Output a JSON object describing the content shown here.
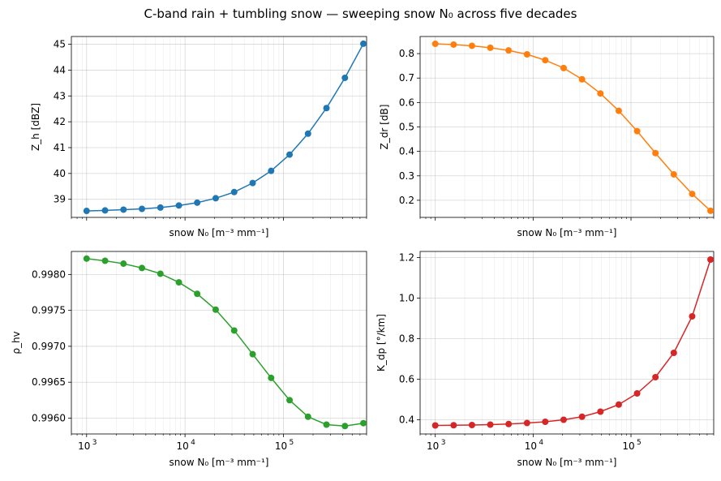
{
  "title": "C-band rain + tumbling snow — sweeping snow N₀ across five decades",
  "chart_data": [
    {
      "type": "line",
      "xlabel": "snow N₀ [m⁻³ mm⁻¹]",
      "ylabel": "Z_h [dBZ]",
      "xscale": "log",
      "xlim": [
        700,
        700000
      ],
      "ylim": [
        38.3,
        45.3
      ],
      "yticks": [
        39,
        40,
        41,
        42,
        43,
        44,
        45
      ],
      "ytick_labels": [
        "39",
        "40",
        "41",
        "42",
        "43",
        "44",
        "45"
      ],
      "xtick_labels_shown": false,
      "grid": true,
      "color": "#1f77b4",
      "x": [
        1000,
        1540,
        2370,
        3650,
        5620,
        8660,
        13300,
        20500,
        31600,
        48700,
        75000,
        115500,
        177800,
        273800,
        421700,
        649400
      ],
      "y": [
        38.55,
        38.57,
        38.6,
        38.63,
        38.68,
        38.76,
        38.87,
        39.04,
        39.28,
        39.63,
        40.1,
        40.73,
        41.54,
        42.53,
        43.7,
        45.02
      ]
    },
    {
      "type": "line",
      "xlabel": "snow N₀ [m⁻³ mm⁻¹]",
      "ylabel": "Z_dr [dB]",
      "xscale": "log",
      "xlim": [
        700,
        700000
      ],
      "ylim": [
        0.13,
        0.87
      ],
      "yticks": [
        0.2,
        0.3,
        0.4,
        0.5,
        0.6,
        0.7,
        0.8
      ],
      "ytick_labels": [
        "0.2",
        "0.3",
        "0.4",
        "0.5",
        "0.6",
        "0.7",
        "0.8"
      ],
      "xtick_labels_shown": false,
      "grid": true,
      "color": "#ff7f0e",
      "x": [
        1000,
        1540,
        2370,
        3650,
        5620,
        8660,
        13300,
        20500,
        31600,
        48700,
        75000,
        115500,
        177800,
        273800,
        421700,
        649400
      ],
      "y": [
        0.84,
        0.837,
        0.832,
        0.824,
        0.813,
        0.797,
        0.773,
        0.741,
        0.695,
        0.637,
        0.566,
        0.483,
        0.393,
        0.306,
        0.226,
        0.157
      ]
    },
    {
      "type": "line",
      "xlabel": "snow N₀ [m⁻³ mm⁻¹]",
      "ylabel": "ρ_hv",
      "xscale": "log",
      "xlim": [
        700,
        700000
      ],
      "ylim": [
        0.99578,
        0.99832
      ],
      "yticks": [
        0.996,
        0.9965,
        0.997,
        0.9975,
        0.998
      ],
      "ytick_labels": [
        "0.9960",
        "0.9965",
        "0.9970",
        "0.9975",
        "0.9980"
      ],
      "xticks": [
        1000,
        10000,
        100000
      ],
      "xtick_labels": [
        "10",
        "10",
        "10"
      ],
      "xtick_exponents": [
        "3",
        "4",
        "5"
      ],
      "grid": true,
      "color": "#2ca02c",
      "x": [
        1000,
        1540,
        2370,
        3650,
        5620,
        8660,
        13300,
        20500,
        31600,
        48700,
        75000,
        115500,
        177800,
        273800,
        421700,
        649400
      ],
      "y": [
        0.99822,
        0.99819,
        0.99815,
        0.99809,
        0.99801,
        0.99789,
        0.99773,
        0.99751,
        0.99722,
        0.99689,
        0.99656,
        0.99625,
        0.99602,
        0.99591,
        0.99589,
        0.99593
      ]
    },
    {
      "type": "line",
      "xlabel": "snow N₀ [m⁻³ mm⁻¹]",
      "ylabel": "K_dp [°/km]",
      "xscale": "log",
      "xlim": [
        700,
        700000
      ],
      "ylim": [
        0.33,
        1.23
      ],
      "yticks": [
        0.4,
        0.6,
        0.8,
        1.0,
        1.2
      ],
      "ytick_labels": [
        "0.4",
        "0.6",
        "0.8",
        "1.0",
        "1.2"
      ],
      "xticks": [
        1000,
        10000,
        100000
      ],
      "xtick_labels": [
        "10",
        "10",
        "10"
      ],
      "xtick_exponents": [
        "3",
        "4",
        "5"
      ],
      "grid": true,
      "color": "#d62728",
      "x": [
        1000,
        1540,
        2370,
        3650,
        5620,
        8660,
        13300,
        20500,
        31600,
        48700,
        75000,
        115500,
        177800,
        273800,
        421700,
        649400
      ],
      "y": [
        0.372,
        0.373,
        0.374,
        0.376,
        0.379,
        0.384,
        0.39,
        0.4,
        0.415,
        0.44,
        0.475,
        0.53,
        0.61,
        0.73,
        0.91,
        1.19
      ]
    }
  ]
}
